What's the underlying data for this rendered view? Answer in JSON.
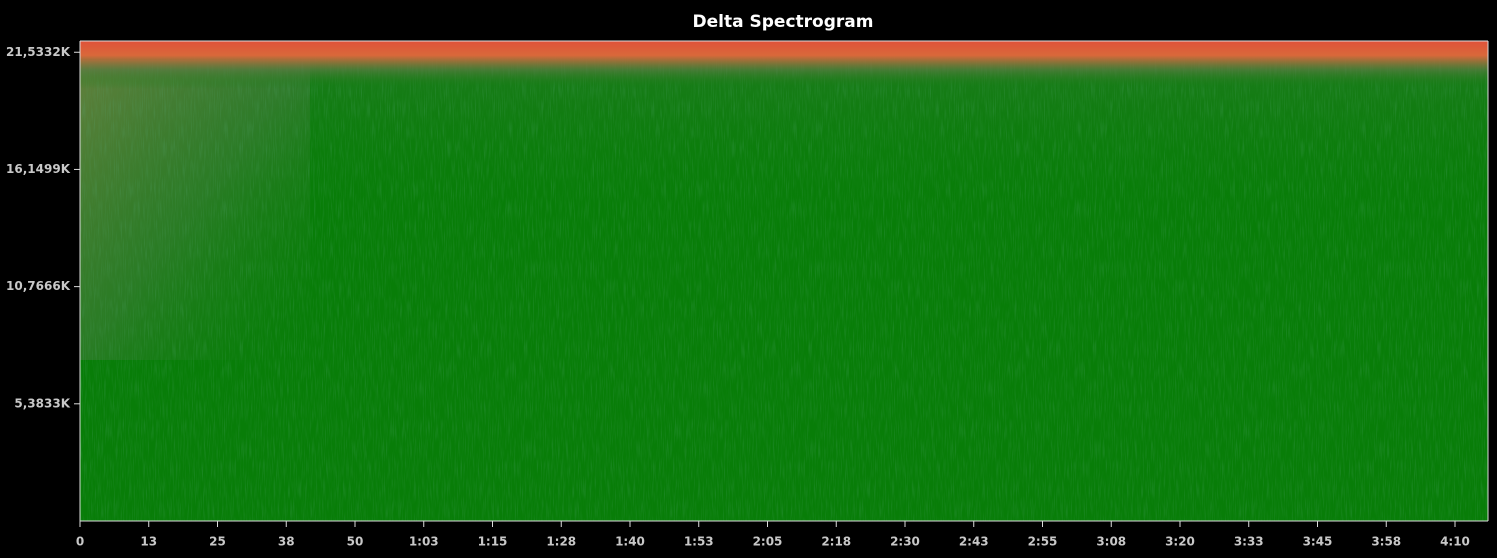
{
  "chart_data": {
    "type": "spectrogram",
    "title": "Delta Spectrogram",
    "xlim": [
      0,
      256
    ],
    "xticks": [
      0,
      {
        "value": 12.5,
        "label": "13"
      },
      25,
      {
        "value": 37.5,
        "label": "38"
      },
      50,
      {
        "value": 62.5,
        "label": "1:03"
      },
      {
        "value": 75,
        "label": "1:15"
      },
      {
        "value": 87.5,
        "label": "1:28"
      },
      {
        "value": 100,
        "label": "1:40"
      },
      {
        "value": 112.5,
        "label": "1:53"
      },
      {
        "value": 125,
        "label": "2:05"
      },
      {
        "value": 137.5,
        "label": "2:18"
      },
      {
        "value": 150,
        "label": "2:30"
      },
      {
        "value": 162.5,
        "label": "2:43"
      },
      {
        "value": 175,
        "label": "2:55"
      },
      {
        "value": 187.5,
        "label": "3:08"
      },
      {
        "value": 200,
        "label": "3:20"
      },
      {
        "value": 212.5,
        "label": "3:33"
      },
      {
        "value": 225,
        "label": "3:45"
      },
      {
        "value": 237.5,
        "label": "3:58"
      },
      {
        "value": 250,
        "label": "4:10"
      }
    ],
    "ylim": [
      0,
      22050
    ],
    "yticks": [
      {
        "value": 5383.3,
        "label": "5,3833K"
      },
      {
        "value": 10766.6,
        "label": "10,7666K"
      },
      {
        "value": 16149.9,
        "label": "16,1499K"
      },
      {
        "value": 21533.2,
        "label": "21,5332K"
      }
    ]
  }
}
